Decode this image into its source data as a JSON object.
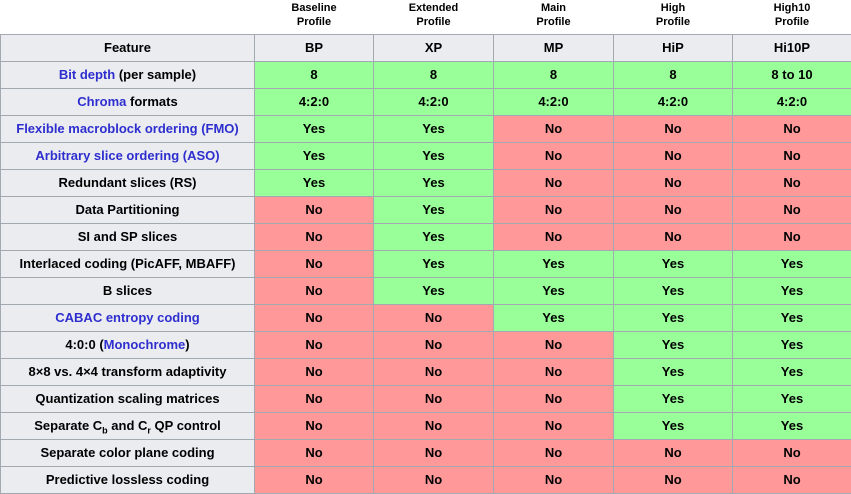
{
  "feature_header": "Feature",
  "columns": [
    {
      "group": "Baseline\nProfile",
      "abbr": "BP"
    },
    {
      "group": "Extended\nProfile",
      "abbr": "XP"
    },
    {
      "group": "Main\nProfile",
      "abbr": "MP"
    },
    {
      "group": "High\nProfile",
      "abbr": "HiP"
    },
    {
      "group": "High10\nProfile",
      "abbr": "Hi10P"
    }
  ],
  "colors": {
    "yes_bg": "#99ff99",
    "no_bg": "#ff9999",
    "header_bg": "#eaecf0",
    "border": "#a2a9b1",
    "link": "#2e2ecf"
  },
  "rows": [
    {
      "label_parts": [
        {
          "text": "Bit depth",
          "link": true
        },
        {
          "text": " (per sample)"
        }
      ],
      "values": [
        "8",
        "8",
        "8",
        "8",
        "8 to 10"
      ],
      "states": [
        "yes",
        "yes",
        "yes",
        "yes",
        "yes"
      ]
    },
    {
      "label_parts": [
        {
          "text": "Chroma",
          "link": true
        },
        {
          "text": " formats"
        }
      ],
      "values": [
        "4:2:0",
        "4:2:0",
        "4:2:0",
        "4:2:0",
        "4:2:0"
      ],
      "states": [
        "yes",
        "yes",
        "yes",
        "yes",
        "yes"
      ]
    },
    {
      "label_parts": [
        {
          "text": "Flexible macroblock ordering (FMO)",
          "link": true
        }
      ],
      "values": [
        "Yes",
        "Yes",
        "No",
        "No",
        "No"
      ],
      "states": [
        "yes",
        "yes",
        "no",
        "no",
        "no"
      ]
    },
    {
      "label_parts": [
        {
          "text": "Arbitrary slice ordering (ASO)",
          "link": true
        }
      ],
      "values": [
        "Yes",
        "Yes",
        "No",
        "No",
        "No"
      ],
      "states": [
        "yes",
        "yes",
        "no",
        "no",
        "no"
      ]
    },
    {
      "label_parts": [
        {
          "text": "Redundant slices (RS)"
        }
      ],
      "values": [
        "Yes",
        "Yes",
        "No",
        "No",
        "No"
      ],
      "states": [
        "yes",
        "yes",
        "no",
        "no",
        "no"
      ]
    },
    {
      "label_parts": [
        {
          "text": "Data Partitioning"
        }
      ],
      "values": [
        "No",
        "Yes",
        "No",
        "No",
        "No"
      ],
      "states": [
        "no",
        "yes",
        "no",
        "no",
        "no"
      ]
    },
    {
      "label_parts": [
        {
          "text": "SI and SP slices"
        }
      ],
      "values": [
        "No",
        "Yes",
        "No",
        "No",
        "No"
      ],
      "states": [
        "no",
        "yes",
        "no",
        "no",
        "no"
      ]
    },
    {
      "label_parts": [
        {
          "text": "Interlaced coding (PicAFF, MBAFF)"
        }
      ],
      "values": [
        "No",
        "Yes",
        "Yes",
        "Yes",
        "Yes"
      ],
      "states": [
        "no",
        "yes",
        "yes",
        "yes",
        "yes"
      ]
    },
    {
      "label_parts": [
        {
          "text": "B slices"
        }
      ],
      "values": [
        "No",
        "Yes",
        "Yes",
        "Yes",
        "Yes"
      ],
      "states": [
        "no",
        "yes",
        "yes",
        "yes",
        "yes"
      ]
    },
    {
      "label_parts": [
        {
          "text": "CABAC entropy coding",
          "link": true
        }
      ],
      "values": [
        "No",
        "No",
        "Yes",
        "Yes",
        "Yes"
      ],
      "states": [
        "no",
        "no",
        "yes",
        "yes",
        "yes"
      ]
    },
    {
      "label_parts": [
        {
          "text": "4:0:0 ("
        },
        {
          "text": "Monochrome",
          "link": true
        },
        {
          "text": ")"
        }
      ],
      "values": [
        "No",
        "No",
        "No",
        "Yes",
        "Yes"
      ],
      "states": [
        "no",
        "no",
        "no",
        "yes",
        "yes"
      ]
    },
    {
      "label_parts": [
        {
          "text": "8×8 vs. 4×4 transform adaptivity"
        }
      ],
      "values": [
        "No",
        "No",
        "No",
        "Yes",
        "Yes"
      ],
      "states": [
        "no",
        "no",
        "no",
        "yes",
        "yes"
      ]
    },
    {
      "label_parts": [
        {
          "text": "Quantization scaling matrices"
        }
      ],
      "values": [
        "No",
        "No",
        "No",
        "Yes",
        "Yes"
      ],
      "states": [
        "no",
        "no",
        "no",
        "yes",
        "yes"
      ]
    },
    {
      "label_parts": [
        {
          "text": "Separate C"
        },
        {
          "text": "b",
          "sub": true
        },
        {
          "text": " and C"
        },
        {
          "text": "r",
          "sub": true
        },
        {
          "text": " QP control"
        }
      ],
      "values": [
        "No",
        "No",
        "No",
        "Yes",
        "Yes"
      ],
      "states": [
        "no",
        "no",
        "no",
        "yes",
        "yes"
      ]
    },
    {
      "label_parts": [
        {
          "text": "Separate color plane coding"
        }
      ],
      "values": [
        "No",
        "No",
        "No",
        "No",
        "No"
      ],
      "states": [
        "no",
        "no",
        "no",
        "no",
        "no"
      ]
    },
    {
      "label_parts": [
        {
          "text": "Predictive lossless coding"
        }
      ],
      "values": [
        "No",
        "No",
        "No",
        "No",
        "No"
      ],
      "states": [
        "no",
        "no",
        "no",
        "no",
        "no"
      ]
    }
  ]
}
